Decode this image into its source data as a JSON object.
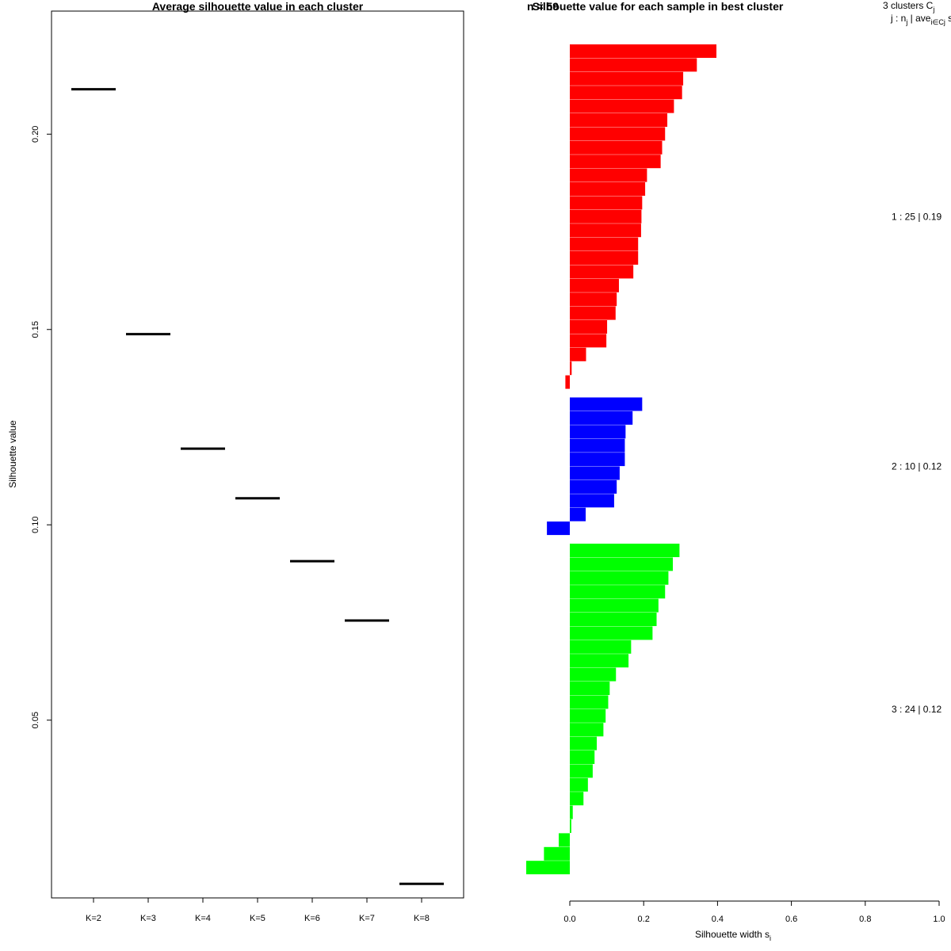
{
  "chart_data": [
    {
      "type": "line",
      "title": "Average silhouette value in each cluster",
      "xlabel": "",
      "ylabel": "Silhouette value",
      "categories": [
        "K=2",
        "K=3",
        "K=4",
        "K=5",
        "K=6",
        "K=7",
        "K=8"
      ],
      "values": [
        0.2115,
        0.1488,
        0.1195,
        0.1068,
        0.0907,
        0.0755,
        0.0081
      ],
      "ylim": [
        0.0045,
        0.2315
      ],
      "yticks": [
        "0.05",
        "0.10",
        "0.15",
        "0.20"
      ],
      "grid": false,
      "legend": "none"
    },
    {
      "type": "bar",
      "title": "Silhouette value for each sample in best cluster",
      "xlabel": "Silhouette width",
      "xlabel_subscript": "i",
      "xlabel_letter": "s",
      "xlim": [
        0,
        1
      ],
      "xticks": [
        "0.0",
        "0.2",
        "0.4",
        "0.6",
        "0.8",
        "1.0"
      ],
      "orientation": "horizontal",
      "overlap_text": "n = 59",
      "header": {
        "count_text": "3  clusters  C",
        "count_sub": "j",
        "legend_text": "j :  n",
        "legend_sub": "j",
        "legend_mid": " | ave",
        "legend_sub2": "i∈Cj",
        "legend_tail": "  s"
      },
      "clusters": [
        {
          "label": "1 :  25  |  0.19",
          "color": "#ff0000",
          "values": [
            0.397,
            0.344,
            0.307,
            0.304,
            0.282,
            0.264,
            0.258,
            0.25,
            0.246,
            0.209,
            0.204,
            0.196,
            0.194,
            0.193,
            0.185,
            0.185,
            0.172,
            0.133,
            0.127,
            0.124,
            0.101,
            0.099,
            0.044,
            0.005,
            -0.012
          ]
        },
        {
          "label": "2 :  10  |  0.12",
          "color": "#0000ff",
          "values": [
            0.196,
            0.17,
            0.151,
            0.149,
            0.149,
            0.135,
            0.127,
            0.12,
            0.043,
            -0.062
          ]
        },
        {
          "label": "3 :  24  |  0.12",
          "color": "#00ff00",
          "values": [
            0.297,
            0.279,
            0.267,
            0.258,
            0.24,
            0.235,
            0.224,
            0.166,
            0.159,
            0.125,
            0.108,
            0.104,
            0.097,
            0.091,
            0.073,
            0.067,
            0.062,
            0.049,
            0.037,
            0.008,
            0.004,
            -0.03,
            -0.07,
            -0.118
          ]
        }
      ]
    }
  ]
}
